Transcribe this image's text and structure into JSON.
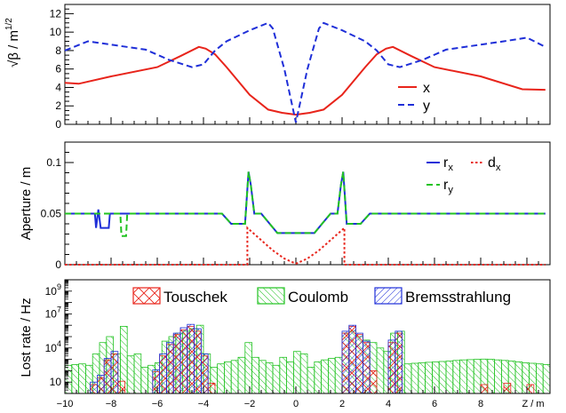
{
  "chart_data": [
    {
      "type": "line",
      "ylabel": "√β / m",
      "ylabel_exponent": "1/2",
      "xlim": [
        -10,
        11
      ],
      "ylim": [
        0,
        13
      ],
      "yticks": [
        "0",
        "2",
        "4",
        "6",
        "8",
        "10",
        "12"
      ],
      "legend": "bottom-right",
      "series": [
        {
          "name": "x",
          "color": "#e8241b",
          "dash": "solid",
          "x": [
            -10,
            -9.4,
            -8,
            -6,
            -5,
            -4.2,
            -3.9,
            -3.5,
            -3,
            -2,
            -1.2,
            -0.6,
            0,
            0.6,
            1.2,
            2,
            3,
            3.5,
            3.9,
            4.2,
            5,
            6,
            8,
            9.8,
            10.8
          ],
          "y": [
            4.5,
            4.4,
            5.2,
            6.2,
            7.4,
            8.4,
            8.2,
            7.6,
            6.2,
            3.2,
            1.6,
            1.25,
            1.05,
            1.25,
            1.6,
            3.2,
            6.2,
            7.6,
            8.2,
            8.4,
            7.4,
            6.2,
            5.2,
            3.8,
            3.75
          ]
        },
        {
          "name": "y",
          "color": "#1f2fd8",
          "dash": "dashed",
          "x": [
            -10,
            -9,
            -6.5,
            -5.5,
            -4.5,
            -4,
            -3.5,
            -3,
            -2,
            -1.2,
            -1,
            -0.5,
            0,
            0.5,
            1,
            1.2,
            2,
            3,
            3.5,
            4,
            4.5,
            5.5,
            6.5,
            9,
            10,
            10.8
          ],
          "y": [
            8.0,
            9.0,
            8.1,
            7.0,
            6.2,
            6.5,
            8.0,
            9.0,
            10.2,
            11.0,
            10.4,
            6.0,
            0.2,
            6.0,
            10.4,
            11.0,
            10.2,
            9.0,
            8.0,
            6.5,
            6.2,
            7.0,
            8.1,
            9.0,
            9.4,
            8.4
          ]
        }
      ]
    },
    {
      "type": "line",
      "ylabel": "Aperture / m",
      "xlim": [
        -10,
        11
      ],
      "ylim": [
        0,
        0.12
      ],
      "yticks": [
        "0",
        "0.05",
        "0.1"
      ],
      "legend": "top-right",
      "series": [
        {
          "name": "r_x",
          "color": "#1f2fd8",
          "dash": "solid",
          "x": [
            -10,
            -8.7,
            -8.65,
            -8.55,
            -8.45,
            -8.1,
            -8.05,
            -8.0,
            -7.9,
            -3.2,
            -2.8,
            -2.2,
            -2.05,
            -1.95,
            -1.8,
            -1.5,
            -0.8,
            0.8,
            1.5,
            1.8,
            1.95,
            2.05,
            2.2,
            2.8,
            3.2,
            10.8
          ],
          "y": [
            0.05,
            0.05,
            0.036,
            0.054,
            0.036,
            0.036,
            0.05,
            0.05,
            0.05,
            0.05,
            0.04,
            0.04,
            0.091,
            0.078,
            0.05,
            0.05,
            0.031,
            0.031,
            0.05,
            0.05,
            0.078,
            0.091,
            0.04,
            0.04,
            0.05,
            0.05
          ]
        },
        {
          "name": "r_y",
          "color": "#22c322",
          "dash": "dashed",
          "x": [
            -10,
            -7.6,
            -7.55,
            -7.35,
            -7.3,
            -3.2,
            -2.8,
            -2.2,
            -2.05,
            -1.95,
            -1.8,
            -1.5,
            -0.8,
            0.8,
            1.5,
            1.8,
            1.95,
            2.05,
            2.2,
            2.8,
            3.2,
            10.8
          ],
          "y": [
            0.05,
            0.05,
            0.028,
            0.028,
            0.05,
            0.05,
            0.04,
            0.04,
            0.091,
            0.078,
            0.05,
            0.05,
            0.031,
            0.031,
            0.05,
            0.05,
            0.078,
            0.091,
            0.04,
            0.04,
            0.05,
            0.05
          ]
        },
        {
          "name": "d_x",
          "color": "#e8241b",
          "dash": "dotted",
          "x": [
            -10,
            -2.1,
            -2.1,
            -1.5,
            -1,
            -0.5,
            0,
            0.5,
            1,
            1.5,
            2.1,
            2.1,
            10.8
          ],
          "y": [
            0,
            0,
            0.036,
            0.024,
            0.014,
            0.006,
            0.001,
            0.006,
            0.014,
            0.024,
            0.036,
            0,
            0
          ]
        }
      ]
    },
    {
      "type": "bar",
      "ylabel": "Lost rate / Hz",
      "xlabel": "Z / m",
      "log_y": true,
      "xlim": [
        -10,
        11
      ],
      "ylim": [
        1,
        10000000000
      ],
      "yticks": [
        {
          "base": "10",
          "exp": "",
          "value": 10
        },
        {
          "base": "10",
          "exp": "4",
          "value": 10000
        },
        {
          "base": "10",
          "exp": "7",
          "value": 10000000
        },
        {
          "base": "10",
          "exp": "9",
          "value": 1000000000
        }
      ],
      "xticks": [
        "−10",
        "−8",
        "−6",
        "−4",
        "−2",
        "0",
        "2",
        "4",
        "6",
        "8"
      ],
      "legend": "top",
      "series": [
        {
          "name": "Touschek",
          "color": "#e8241b",
          "hatch": "cross",
          "x": [
            -8.9,
            -8.6,
            -8.3,
            -8.0,
            -7.7,
            -6.2,
            -5.9,
            -5.6,
            -5.3,
            -5.0,
            -4.7,
            -4.4,
            -4.1,
            -3.8,
            2.0,
            2.3,
            2.6,
            2.9,
            3.2,
            4.0,
            4.3,
            8.0,
            9.0,
            10.0
          ],
          "y": [
            6,
            25,
            900,
            3000,
            12,
            80,
            2000,
            20000,
            150000,
            400000,
            800000,
            300000,
            2000,
            8,
            200000,
            800000,
            150000,
            30000,
            100,
            30000,
            200000,
            6,
            8,
            6
          ]
        },
        {
          "name": "Coulomb",
          "color": "#22c322",
          "hatch": "diagonal-up",
          "x": [
            -10.0,
            -9.7,
            -9.4,
            -9.1,
            -8.8,
            -8.5,
            -8.2,
            -7.9,
            -7.6,
            -7.3,
            -7.0,
            -6.7,
            -6.4,
            -6.1,
            -5.8,
            -5.5,
            -5.2,
            -4.9,
            -4.6,
            -4.3,
            -4.0,
            -3.7,
            -3.4,
            -3.1,
            -2.8,
            -2.5,
            -2.2,
            -1.9,
            -1.6,
            -1.3,
            -1.0,
            -0.7,
            -0.4,
            -0.1,
            0.2,
            0.5,
            0.8,
            1.1,
            1.4,
            1.7,
            2.0,
            2.3,
            2.6,
            2.9,
            3.2,
            3.5,
            3.8,
            4.1,
            4.4,
            4.7,
            5.0,
            5.3,
            5.6,
            5.9,
            6.2,
            6.5,
            6.8,
            7.1,
            7.4,
            7.7,
            8.0,
            8.3,
            8.6,
            8.9,
            9.2,
            9.5,
            9.8,
            10.1,
            10.4,
            10.7
          ],
          "y": [
            300,
            350,
            400,
            300,
            3000,
            30000,
            100000,
            3000,
            800000,
            2000,
            3000,
            200,
            300,
            500,
            40000,
            100000,
            200000,
            300000,
            500000,
            1000000,
            3000,
            200,
            400,
            600,
            800,
            1500,
            30000,
            1500,
            800,
            500,
            300,
            1500,
            600,
            5000,
            3000,
            200,
            600,
            900,
            1200,
            1500,
            200000,
            300000,
            100000,
            50000,
            30000,
            10000,
            5000,
            200000,
            300000,
            400,
            450,
            500,
            550,
            600,
            650,
            700,
            800,
            900,
            950,
            1000,
            1050,
            1000,
            900,
            800,
            700,
            600,
            500,
            450,
            400,
            350
          ]
        },
        {
          "name": "Bremsstrahlung",
          "color": "#1f2fd8",
          "hatch": "diagonal-down",
          "x": [
            -8.9,
            -8.6,
            -8.3,
            -8.0,
            -6.2,
            -5.9,
            -5.6,
            -5.3,
            -5.0,
            -4.7,
            -4.4,
            -4.1,
            2.0,
            2.3,
            2.6,
            2.9,
            4.0,
            4.3
          ],
          "y": [
            10,
            40,
            1200,
            5000,
            120,
            3000,
            30000,
            200000,
            600000,
            1200000,
            500000,
            3000,
            300000,
            1000000,
            200000,
            40000,
            50000,
            300000
          ]
        }
      ]
    }
  ]
}
